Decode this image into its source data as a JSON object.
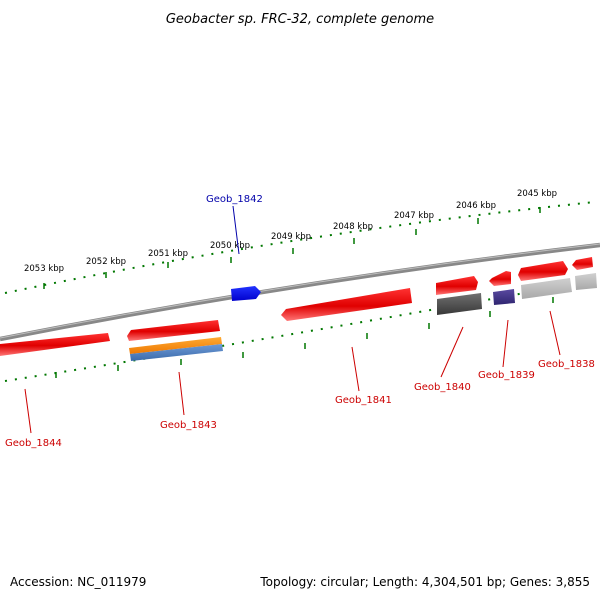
{
  "title": "Geobacter sp. FRC-32, complete genome",
  "footer": {
    "accession": "Accession: NC_011979",
    "summary": "Topology: circular; Length: 4,304,501 bp; Genes: 3,855"
  },
  "ticks": [
    {
      "label": "2053 kbp",
      "pos": 2053
    },
    {
      "label": "2052 kbp",
      "pos": 2052
    },
    {
      "label": "2051 kbp",
      "pos": 2051
    },
    {
      "label": "2050 kbp",
      "pos": 2050
    },
    {
      "label": "2049 kbp",
      "pos": 2049
    },
    {
      "label": "2048 kbp",
      "pos": 2048
    },
    {
      "label": "2047 kbp",
      "pos": 2047
    },
    {
      "label": "2046 kbp",
      "pos": 2046
    },
    {
      "label": "2045 kbp",
      "pos": 2045
    }
  ],
  "genes": [
    {
      "label": "Geob_1844",
      "color": "#cc0000"
    },
    {
      "label": "Geob_1843",
      "color": "#cc0000"
    },
    {
      "label": "Geob_1842",
      "color": "#0000aa"
    },
    {
      "label": "Geob_1841",
      "color": "#cc0000"
    },
    {
      "label": "Geob_1840",
      "color": "#cc0000"
    },
    {
      "label": "Geob_1839",
      "color": "#cc0000"
    },
    {
      "label": "Geob_1838",
      "color": "#cc0000"
    }
  ],
  "colors": {
    "backbone": "#888888",
    "tick": "#007700",
    "gene_red": "#ee0000",
    "gene_blue": "#0000ee",
    "orange": "#ff8800",
    "steelblue": "#4a80c0",
    "darkgray": "#505050",
    "lightgray": "#bbbbbb",
    "slate": "#443388"
  }
}
